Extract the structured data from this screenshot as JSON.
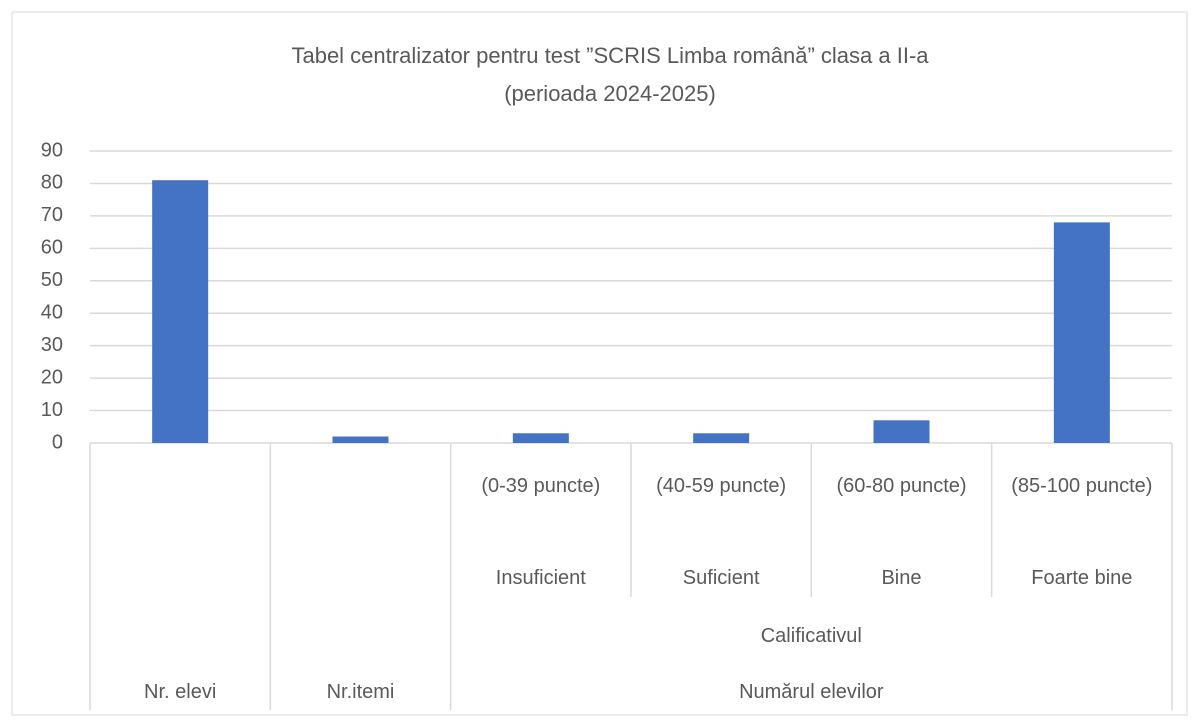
{
  "chart_data": {
    "type": "bar",
    "title": "Tabel centralizator pentru test ”SCRIS Limba română” clasa a II-a",
    "subtitle": "(perioada 2024-2025)",
    "categories": [
      null,
      null,
      "(0-39 puncte)",
      "(40-59 puncte)",
      "(60-80 puncte)",
      "(85-100 puncte)"
    ],
    "subcategories": [
      null,
      null,
      "Insuficient",
      "Suficient",
      "Bine",
      "Foarte bine"
    ],
    "category_groups": [
      {
        "label": "Calificativul",
        "from": 2,
        "to": 5
      }
    ],
    "top_groups": [
      {
        "label": "Nr. elevi",
        "from": 0,
        "to": 0
      },
      {
        "label": "Nr.itemi",
        "from": 1,
        "to": 1
      },
      {
        "label": "Numărul elevilor",
        "from": 2,
        "to": 5
      }
    ],
    "values": [
      81,
      2,
      3,
      3,
      7,
      68
    ],
    "color": "#4472c4",
    "ylim": [
      0,
      90
    ],
    "yticks": [
      0,
      10,
      20,
      30,
      40,
      50,
      60,
      70,
      80,
      90
    ],
    "grid": true
  }
}
